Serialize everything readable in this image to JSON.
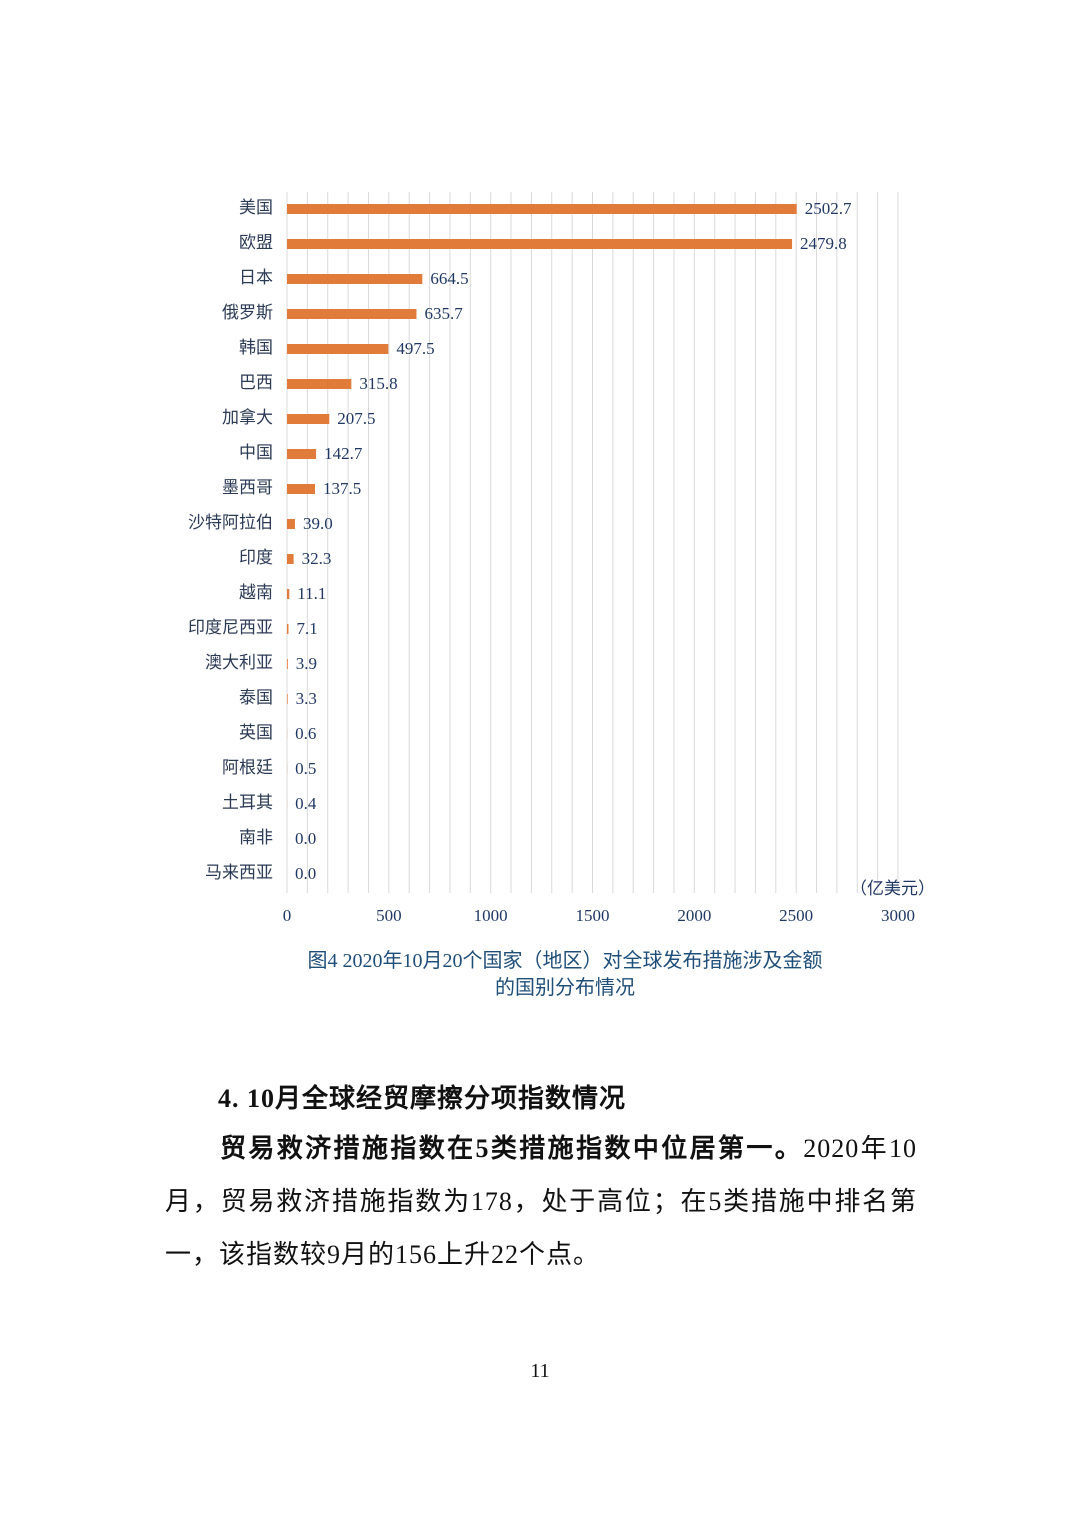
{
  "chart_data": {
    "type": "bar",
    "orientation": "horizontal",
    "categories": [
      "美国",
      "欧盟",
      "日本",
      "俄罗斯",
      "韩国",
      "巴西",
      "加拿大",
      "中国",
      "墨西哥",
      "沙特阿拉伯",
      "印度",
      "越南",
      "印度尼西亚",
      "澳大利亚",
      "泰国",
      "英国",
      "阿根廷",
      "土耳其",
      "南非",
      "马来西亚"
    ],
    "values": [
      2502.7,
      2479.8,
      664.5,
      635.7,
      497.5,
      315.8,
      207.5,
      142.7,
      137.5,
      39.0,
      32.3,
      11.1,
      7.1,
      3.9,
      3.3,
      0.6,
      0.5,
      0.4,
      0.0,
      0.0
    ],
    "value_labels": [
      "2502.7",
      "2479.8",
      "664.5",
      "635.7",
      "497.5",
      "315.8",
      "207.5",
      "142.7",
      "137.5",
      "39.0",
      "32.3",
      "11.1",
      "7.1",
      "3.9",
      "3.3",
      "0.6",
      "0.5",
      "0.4",
      "0.0",
      "0.0"
    ],
    "color": "#e07b39",
    "xlim": [
      0,
      3000
    ],
    "xticks": [
      0,
      500,
      1000,
      1500,
      2000,
      2500,
      3000
    ],
    "grid_lines": [
      0,
      100,
      200,
      300,
      400,
      500,
      600,
      700,
      800,
      900,
      1000,
      1100,
      1200,
      1300,
      1400,
      1500,
      1600,
      1700,
      1800,
      1900,
      2000,
      2100,
      2200,
      2300,
      2400,
      2500,
      2600,
      2700,
      2800,
      2900,
      3000
    ],
    "grid": true,
    "unit": "（亿美元）",
    "caption": [
      "图4  2020年10月20个国家（地区）对全球发布措施涉及金额",
      "的国别分布情况"
    ]
  },
  "heading": "4. 10月全球经贸摩擦分项指数情况",
  "paragraph": {
    "bold": "贸易救济措施指数在5类措施指数中位居第一。",
    "text": "2020年10月，贸易救济措施指数为178，处于高位；在5类措施中排名第一，该指数较9月的156上升22个点。"
  },
  "page_number": "11"
}
